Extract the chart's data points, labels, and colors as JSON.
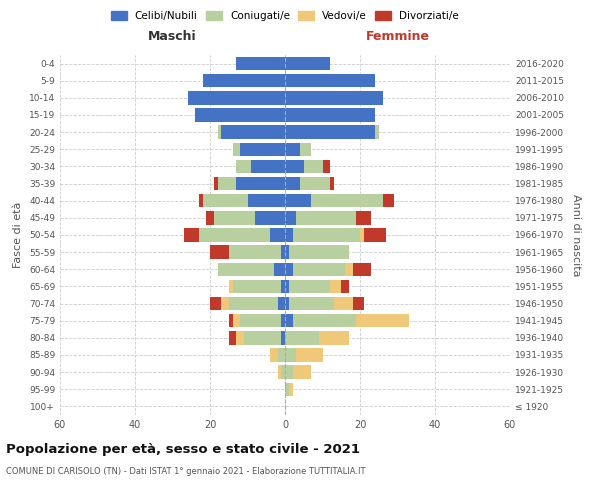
{
  "age_groups": [
    "100+",
    "95-99",
    "90-94",
    "85-89",
    "80-84",
    "75-79",
    "70-74",
    "65-69",
    "60-64",
    "55-59",
    "50-54",
    "45-49",
    "40-44",
    "35-39",
    "30-34",
    "25-29",
    "20-24",
    "15-19",
    "10-14",
    "5-9",
    "0-4"
  ],
  "birth_years": [
    "≤ 1920",
    "1921-1925",
    "1926-1930",
    "1931-1935",
    "1936-1940",
    "1941-1945",
    "1946-1950",
    "1951-1955",
    "1956-1960",
    "1961-1965",
    "1966-1970",
    "1971-1975",
    "1976-1980",
    "1981-1985",
    "1986-1990",
    "1991-1995",
    "1996-2000",
    "2001-2005",
    "2006-2010",
    "2011-2015",
    "2016-2020"
  ],
  "maschi": {
    "celibi": [
      0,
      0,
      0,
      0,
      1,
      1,
      2,
      1,
      3,
      1,
      4,
      8,
      10,
      13,
      9,
      12,
      17,
      24,
      26,
      22,
      13
    ],
    "coniugati": [
      0,
      0,
      1,
      2,
      10,
      11,
      13,
      13,
      15,
      14,
      19,
      11,
      12,
      5,
      4,
      2,
      1,
      0,
      0,
      0,
      0
    ],
    "vedovi": [
      0,
      0,
      1,
      2,
      2,
      2,
      2,
      1,
      0,
      0,
      0,
      0,
      0,
      0,
      0,
      0,
      0,
      0,
      0,
      0,
      0
    ],
    "divorziati": [
      0,
      0,
      0,
      0,
      2,
      1,
      3,
      0,
      0,
      5,
      4,
      2,
      1,
      1,
      0,
      0,
      0,
      0,
      0,
      0,
      0
    ]
  },
  "femmine": {
    "nubili": [
      0,
      0,
      0,
      0,
      0,
      2,
      1,
      1,
      2,
      1,
      2,
      3,
      7,
      4,
      5,
      4,
      24,
      24,
      26,
      24,
      12
    ],
    "coniugate": [
      0,
      1,
      2,
      3,
      9,
      17,
      12,
      11,
      14,
      16,
      18,
      16,
      19,
      8,
      5,
      3,
      1,
      0,
      0,
      0,
      0
    ],
    "vedove": [
      0,
      1,
      5,
      7,
      8,
      14,
      5,
      3,
      2,
      0,
      1,
      0,
      0,
      0,
      0,
      0,
      0,
      0,
      0,
      0,
      0
    ],
    "divorziate": [
      0,
      0,
      0,
      0,
      0,
      0,
      3,
      2,
      5,
      0,
      6,
      4,
      3,
      1,
      2,
      0,
      0,
      0,
      0,
      0,
      0
    ]
  },
  "colors": {
    "celibi_nubili": "#4472c4",
    "coniugati": "#b8cfa0",
    "vedovi": "#f0c87a",
    "divorziati": "#c0392b"
  },
  "xlim": 60,
  "title": "Popolazione per età, sesso e stato civile - 2021",
  "subtitle": "COMUNE DI CARISOLO (TN) - Dati ISTAT 1° gennaio 2021 - Elaborazione TUTTITALIA.IT",
  "ylabel_left": "Fasce di età",
  "ylabel_right": "Anni di nascita",
  "xlabel_left": "Maschi",
  "xlabel_right": "Femmine"
}
